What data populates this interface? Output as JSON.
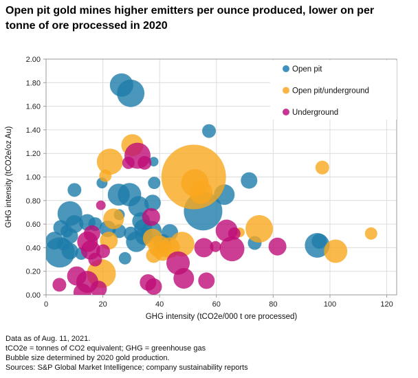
{
  "title": "Open pit gold mines higher emitters per ounce produced, lower on per tonne of ore processed in 2020",
  "footer": {
    "lines": [
      "Data as of Aug. 11, 2021.",
      "tCO2e = tonnes of CO2 equivalent; GHG = greenhouse gas",
      "Bubble size determined by 2020 gold production.",
      "Sources: S&P Global Market Intelligence; company sustainability reports"
    ]
  },
  "chart_data": {
    "type": "scatter",
    "subtype": "bubble",
    "title": "",
    "xlabel": "GHG intensity (tCO2e/000 t ore processed)",
    "ylabel": "GHG intensity (tCO2e/oz Au)",
    "xlim": [
      0,
      123.5
    ],
    "ylim": [
      0,
      2.0
    ],
    "x_ticks": [
      0,
      20,
      40,
      60,
      80,
      100,
      120
    ],
    "y_tick_labels": [
      "0.00",
      "0.20",
      "0.40",
      "0.60",
      "0.80",
      "1.00",
      "1.20",
      "1.40",
      "1.60",
      "1.80",
      "2.00"
    ],
    "grid": true,
    "grid_color": "#dcdcdc",
    "frame_color": "#9a9a9a",
    "bubble_opacity": 0.8,
    "bubble_note": "Bubble size determined by 2020 gold production.",
    "legend_position": "top-right",
    "legend": [
      {
        "label": "Open pit",
        "color": "#3D91BC"
      },
      {
        "label": "Open pit/underground",
        "color": "#FBB445"
      },
      {
        "label": "Underground",
        "color": "#C73690"
      }
    ],
    "series": [
      {
        "name": "Open pit",
        "color": "#1E7CAA",
        "points": [
          [
            55.3,
            0.71,
            28
          ],
          [
            4.8,
            0.36,
            22
          ],
          [
            29.8,
            1.71,
            20
          ],
          [
            95.5,
            0.42,
            18
          ],
          [
            8.4,
            0.69,
            18
          ],
          [
            26.6,
            1.78,
            17
          ],
          [
            29.4,
            0.85,
            17
          ],
          [
            25.6,
            0.85,
            16
          ],
          [
            62.8,
            0.85,
            15
          ],
          [
            32.6,
            0.75,
            15
          ],
          [
            31.8,
            0.45,
            15
          ],
          [
            37.1,
            0.54,
            15
          ],
          [
            10.0,
            0.6,
            13
          ],
          [
            33.5,
            0.625,
            13
          ],
          [
            34.5,
            0.5,
            13
          ],
          [
            34.2,
            0.565,
            13
          ],
          [
            43.6,
            0.53,
            12
          ],
          [
            41.0,
            0.44,
            13
          ],
          [
            3.0,
            0.46,
            13
          ],
          [
            71.5,
            0.97,
            12
          ],
          [
            37.5,
            0.78,
            12
          ],
          [
            14.5,
            0.615,
            12
          ],
          [
            21.7,
            0.56,
            12
          ],
          [
            8.4,
            0.37,
            12
          ],
          [
            96.2,
            0.455,
            11
          ],
          [
            5.2,
            0.57,
            11
          ],
          [
            8.6,
            0.5,
            11
          ],
          [
            57.4,
            1.39,
            10
          ],
          [
            10.0,
            0.89,
            10
          ],
          [
            17.3,
            0.6,
            10
          ],
          [
            25.8,
            0.54,
            10
          ],
          [
            29.8,
            0.52,
            10
          ],
          [
            73.5,
            0.44,
            10
          ],
          [
            38.1,
            0.95,
            9
          ],
          [
            7.3,
            0.54,
            9
          ],
          [
            6.0,
            0.43,
            9
          ],
          [
            12.4,
            0.35,
            9
          ],
          [
            27.8,
            0.31,
            9
          ],
          [
            19.7,
            0.95,
            8
          ],
          [
            25.8,
            0.68,
            8
          ],
          [
            37.9,
            1.13,
            7
          ]
        ]
      },
      {
        "name": "Open pit/underground",
        "color": "#F9A71E",
        "points": [
          [
            52.0,
            1.0,
            47
          ],
          [
            19.5,
            0.18,
            21
          ],
          [
            52.4,
            0.95,
            20
          ],
          [
            75.1,
            0.56,
            20
          ],
          [
            22.5,
            1.13,
            19
          ],
          [
            47.9,
            0.43,
            18
          ],
          [
            54.5,
            0.87,
            17
          ],
          [
            102.0,
            0.37,
            17
          ],
          [
            30.4,
            1.27,
            16
          ],
          [
            39.9,
            0.41,
            16
          ],
          [
            23.8,
            0.645,
            15
          ],
          [
            43.5,
            0.4,
            15
          ],
          [
            37.5,
            0.48,
            14
          ],
          [
            41.1,
            0.37,
            14
          ],
          [
            22.1,
            0.46,
            13
          ],
          [
            37.9,
            0.335,
            11
          ],
          [
            97.3,
            1.08,
            10
          ],
          [
            20.9,
            1.01,
            9
          ],
          [
            114.5,
            0.52,
            9
          ],
          [
            68.3,
            0.53,
            7
          ]
        ]
      },
      {
        "name": "Underground",
        "color": "#BE0E78",
        "points": [
          [
            32.2,
            1.18,
            19
          ],
          [
            65.5,
            0.39,
            18
          ],
          [
            46.5,
            0.27,
            17
          ],
          [
            63.6,
            0.545,
            16
          ],
          [
            14.5,
            0.11,
            16
          ],
          [
            14.6,
            0.45,
            15
          ],
          [
            48.5,
            0.14,
            15
          ],
          [
            55.6,
            0.4,
            14
          ],
          [
            15.7,
            0.38,
            14
          ],
          [
            10.8,
            0.16,
            14
          ],
          [
            37.0,
            0.66,
            13
          ],
          [
            81.5,
            0.41,
            13
          ],
          [
            12.8,
            0.02,
            13
          ],
          [
            16.2,
            0.52,
            12
          ],
          [
            56.5,
            0.12,
            12
          ],
          [
            18.5,
            0.05,
            12
          ],
          [
            35.9,
            0.105,
            12
          ],
          [
            37.9,
            0.07,
            12
          ],
          [
            20.1,
            0.37,
            10
          ],
          [
            17.3,
            0.3,
            10
          ],
          [
            34.7,
            1.12,
            10
          ],
          [
            4.7,
            0.085,
            10
          ],
          [
            29.0,
            1.12,
            9
          ],
          [
            66.3,
            0.52,
            9
          ],
          [
            59.7,
            0.41,
            8
          ],
          [
            19.3,
            0.76,
            7
          ]
        ]
      }
    ]
  }
}
